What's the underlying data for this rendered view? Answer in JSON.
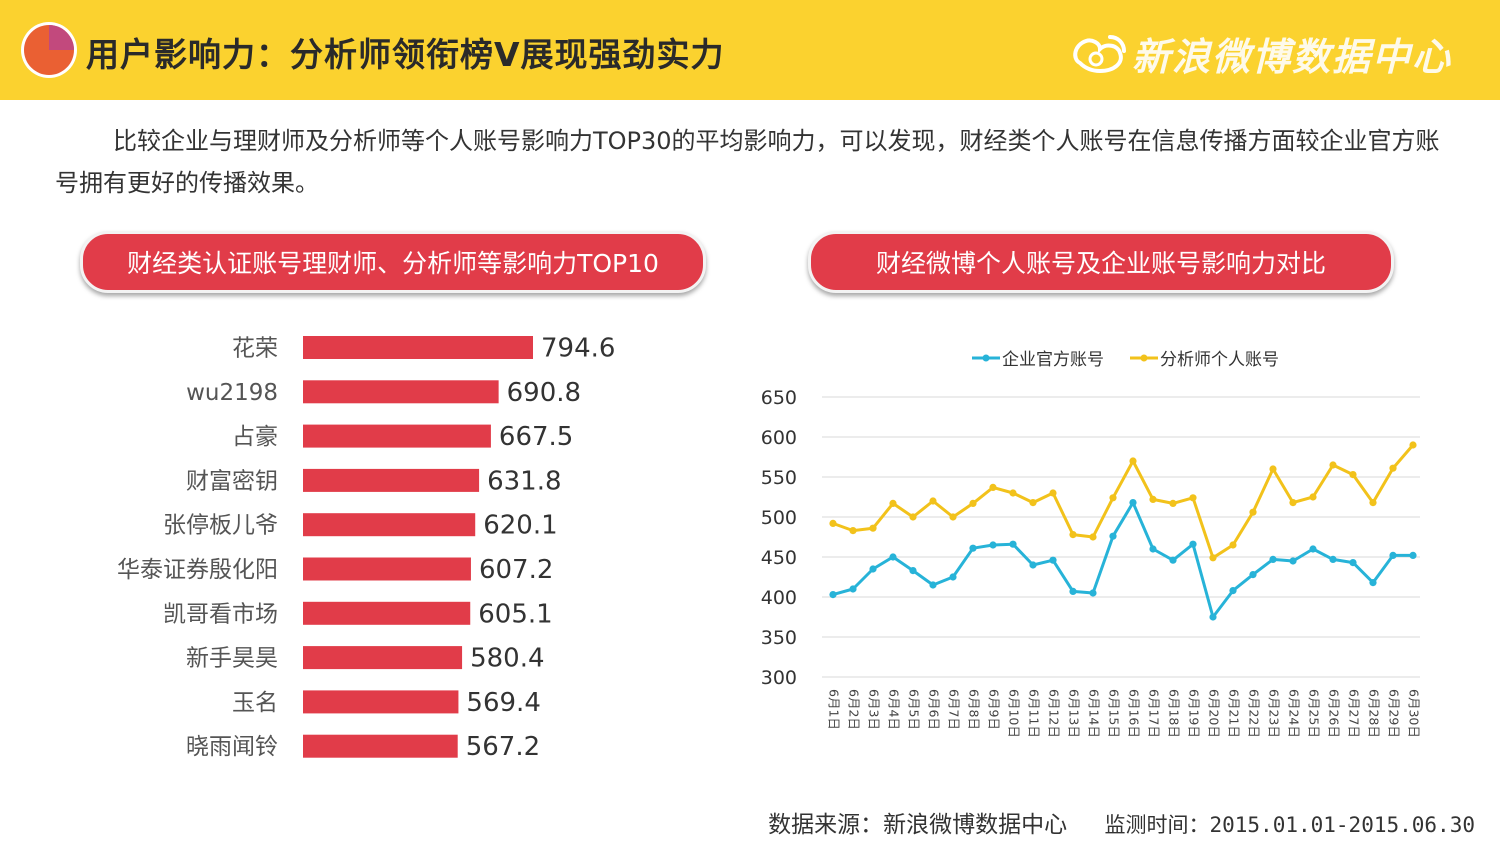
{
  "header": {
    "title": "用户影响力：分析师领衔榜V展现强劲实力",
    "brand": "新浪微博数据中心",
    "colors": {
      "background": "#fbd22f",
      "pie_main": "#ea6033",
      "pie_slice": "#c2497d"
    }
  },
  "intro": "比较企业与理财师及分析师等个人账号影响力TOP30的平均影响力，可以发现，财经类个人账号在信息传播方面较企业官方账号拥有更好的传播效果。",
  "left_title": "财经类认证账号理财师、分析师等影响力TOP10",
  "right_title": "财经微博个人账号及企业账号影响力对比",
  "footer": {
    "source": "数据来源：新浪微博数据中心",
    "time": "监测时间：2015.01.01-2015.06.30"
  },
  "chart_data": [
    {
      "type": "bar",
      "orientation": "horizontal",
      "title": "财经类认证账号理财师、分析师等影响力TOP10",
      "categories": [
        "花荣",
        "wu2198",
        "占豪",
        "财富密钥",
        "张停板儿爷",
        "华泰证券殷化阳",
        "凯哥看市场",
        "新手昊昊",
        "玉名",
        "晓雨闻铃"
      ],
      "values": [
        794.6,
        690.8,
        667.5,
        631.8,
        620.1,
        607.2,
        605.1,
        580.4,
        569.4,
        567.2
      ],
      "value_labels": [
        "794.6",
        "690.8",
        "667.5",
        "631.8",
        "620.1",
        "607.2",
        "605.1",
        "580.4",
        "569.4",
        "567.2"
      ],
      "axis_min": 100,
      "color": "#e13c49"
    },
    {
      "type": "line",
      "title": "财经微博个人账号及企业账号影响力对比",
      "x": [
        "6月1日",
        "6月2日",
        "6月3日",
        "6月4日",
        "6月5日",
        "6月6日",
        "6月7日",
        "6月8日",
        "6月9日",
        "6月10日",
        "6月11日",
        "6月12日",
        "6月13日",
        "6月14日",
        "6月15日",
        "6月16日",
        "6月17日",
        "6月18日",
        "6月19日",
        "6月20日",
        "6月21日",
        "6月22日",
        "6月23日",
        "6月24日",
        "6月25日",
        "6月26日",
        "6月27日",
        "6月28日",
        "6月29日",
        "6月30日"
      ],
      "series": [
        {
          "name": "企业官方账号",
          "color": "#27b3d8",
          "values": [
            403,
            410,
            435,
            450,
            433,
            415,
            425,
            461,
            465,
            466,
            440,
            446,
            407,
            405,
            476,
            518,
            460,
            446,
            466,
            375,
            408,
            428,
            447,
            445,
            460,
            447,
            443,
            418,
            452,
            452
          ]
        },
        {
          "name": "分析师个人账号",
          "color": "#f2c21b",
          "values": [
            492,
            483,
            486,
            517,
            500,
            520,
            500,
            517,
            537,
            530,
            518,
            530,
            478,
            475,
            524,
            570,
            522,
            517,
            524,
            449,
            465,
            506,
            560,
            518,
            525,
            565,
            553,
            518,
            561,
            590
          ]
        }
      ],
      "yticks": [
        650,
        600,
        550,
        500,
        450,
        400,
        350,
        300
      ],
      "ylim": [
        300,
        650
      ],
      "legend_position": "top-center",
      "grid": true
    }
  ]
}
